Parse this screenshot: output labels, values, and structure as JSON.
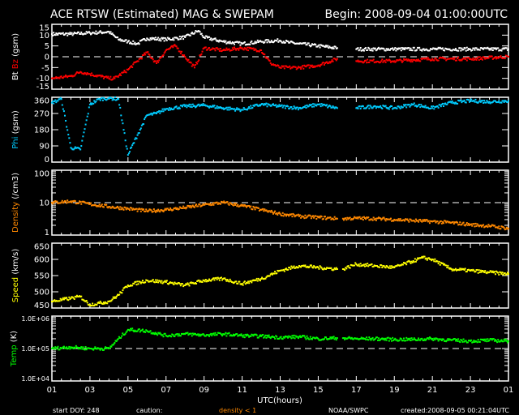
{
  "chart_data": {
    "type": "scatter",
    "title": "ACE RTSW (Estimated) MAG & SWEPAM",
    "begin": "Begin: 2008-09-04 01:00:00UTC",
    "xlabel": "UTC(hours)",
    "x_tick_labels": [
      "01",
      "03",
      "05",
      "07",
      "09",
      "11",
      "13",
      "15",
      "17",
      "19",
      "21",
      "23",
      "01"
    ],
    "xlim": [
      0,
      24
    ],
    "footer": {
      "start_doy": "start DOY: 248",
      "caution": "caution:",
      "density_note": "density < 1",
      "source": "NOAA/SWPC",
      "created": "created:2008-09-05 00:21:04UTC"
    },
    "colors": {
      "bt": "#ffffff",
      "bz": "#ff0000",
      "phi": "#00ccff",
      "density": "#ff8800",
      "speed": "#ffff00",
      "temp": "#00ff00"
    },
    "panels": [
      {
        "id": "mag",
        "ylabel_parts": [
          "Bt",
          "Bz",
          "(gsm)"
        ],
        "scale": "linear",
        "ylim": [
          -15,
          15
        ],
        "ticks": [
          15,
          10,
          5,
          0,
          -5,
          -10,
          -15
        ],
        "tick_labels": [
          "15",
          "10",
          "5",
          "0",
          "-5",
          "-10",
          "-15"
        ],
        "dashed": 0,
        "series": [
          {
            "name": "Bt",
            "color_key": "bt",
            "x": [
              0,
              1,
              2,
              3,
              3.5,
              4,
              4.5,
              5,
              6,
              7,
              7.7,
              8,
              9,
              10,
              11,
              12,
              12.5,
              13,
              14,
              15,
              16,
              18,
              20,
              22,
              24
            ],
            "y": [
              10.5,
              10.5,
              11,
              11.5,
              8,
              7,
              6,
              8.5,
              8,
              9,
              12,
              9,
              7,
              6,
              7,
              7.5,
              6.5,
              6,
              5,
              4,
              3.5,
              3.5,
              3.5,
              3.5,
              3.5
            ]
          },
          {
            "name": "Bz",
            "color_key": "bz",
            "x": [
              0,
              1,
              1.5,
              2,
              3,
              3.3,
              4,
              4.5,
              5,
              5.5,
              6,
              6.5,
              7,
              7.5,
              8,
              9,
              10,
              11,
              11.5,
              12,
              13,
              14,
              15,
              16,
              18,
              20,
              22,
              24
            ],
            "y": [
              -10,
              -9,
              -7,
              -8,
              -10,
              -10,
              -6,
              -2,
              2,
              -3,
              3,
              5,
              0,
              -5,
              4,
              3,
              4,
              3,
              -3,
              -5,
              -5,
              -4,
              -1,
              -2,
              -2,
              -1,
              -1,
              0
            ]
          }
        ]
      },
      {
        "id": "phi",
        "ylabel_parts": [
          "Phi",
          "(gsm)"
        ],
        "scale": "linear",
        "ylim": [
          0,
          360
        ],
        "ticks": [
          360,
          270,
          180,
          90,
          0
        ],
        "tick_labels": [
          "360",
          "270",
          "180",
          "90",
          "0"
        ],
        "series": [
          {
            "name": "Phi",
            "color_key": "phi",
            "x": [
              0,
              0.5,
              1,
              1.5,
              2,
              2.5,
              3,
              3.5,
              4,
              4.5,
              5,
              5.5,
              6,
              7,
              8,
              9,
              10,
              11,
              12,
              13,
              14,
              15,
              16,
              17,
              18,
              19,
              20,
              21,
              22,
              23,
              24
            ],
            "y": [
              330,
              350,
              80,
              70,
              320,
              350,
              355,
              350,
              40,
              150,
              260,
              270,
              295,
              310,
              315,
              300,
              290,
              320,
              310,
              300,
              320,
              300,
              300,
              310,
              300,
              320,
              300,
              330,
              340,
              335,
              340
            ]
          }
        ]
      },
      {
        "id": "density",
        "ylabel_parts": [
          "Density",
          "(/cm3)"
        ],
        "scale": "log",
        "ylim": [
          1,
          100
        ],
        "ticks": [
          100,
          10,
          1
        ],
        "tick_labels": [
          "100",
          "10",
          "1"
        ],
        "dashed": 10,
        "series": [
          {
            "name": "Density",
            "color_key": "density",
            "x": [
              0,
              1,
              2,
              3,
              4,
              5,
              6,
              7,
              8,
              9,
              10,
              11,
              12,
              13,
              14,
              15,
              15.3,
              16,
              17,
              18,
              19,
              20,
              21,
              22,
              23,
              24
            ],
            "y": [
              10,
              11,
              9,
              7.5,
              6.5,
              5.5,
              6,
              7,
              8.5,
              10,
              8,
              6,
              4.5,
              3.8,
              3.5,
              3.2,
              3.2,
              3.3,
              3.2,
              3,
              2.8,
              2.6,
              2.4,
              2.1,
              1.9,
              1.6
            ]
          }
        ]
      },
      {
        "id": "speed",
        "ylabel_parts": [
          "Speed",
          "(km/s)"
        ],
        "scale": "linear",
        "ylim": [
          450,
          650
        ],
        "ticks": [
          650,
          600,
          550,
          500,
          450
        ],
        "tick_labels": [
          "650",
          "600",
          "550",
          "500",
          "450"
        ],
        "series": [
          {
            "name": "Speed",
            "color_key": "speed",
            "x": [
              0,
              1,
              1.5,
              2,
              2.5,
              3,
              3.5,
              4,
              5,
              6,
              7,
              8,
              9,
              10,
              11,
              12,
              13,
              14,
              15,
              15.3,
              16,
              17,
              18,
              19,
              19.5,
              20,
              21,
              22,
              23,
              24
            ],
            "y": [
              470,
              480,
              485,
              460,
              465,
              470,
              490,
              520,
              535,
              530,
              520,
              535,
              540,
              525,
              540,
              565,
              580,
              575,
              570,
              570,
              585,
              580,
              575,
              595,
              605,
              600,
              570,
              565,
              560,
              555
            ]
          }
        ]
      },
      {
        "id": "temp",
        "ylabel_parts": [
          "Temp",
          "(K)"
        ],
        "scale": "log",
        "ylim": [
          10000,
          1000000
        ],
        "ticks": [
          1000000,
          100000,
          10000
        ],
        "tick_labels": [
          "1.0E+06",
          "1.0E+05",
          "1.0E+04"
        ],
        "dashed": 100000,
        "series": [
          {
            "name": "Temp",
            "color_key": "temp",
            "x": [
              0,
              1,
              2,
              3,
              3.3,
              4,
              5,
              6,
              7,
              8,
              9,
              10,
              11,
              12,
              13,
              14,
              15,
              15.3,
              16,
              17,
              18,
              19,
              20,
              21,
              22,
              23,
              24
            ],
            "y": [
              100000,
              110000,
              100000,
              100000,
              150000,
              380000,
              350000,
              250000,
              280000,
              260000,
              280000,
              250000,
              240000,
              220000,
              230000,
              200000,
              210000,
              210000,
              200000,
              200000,
              190000,
              190000,
              200000,
              180000,
              170000,
              180000,
              170000
            ]
          }
        ]
      }
    ]
  }
}
